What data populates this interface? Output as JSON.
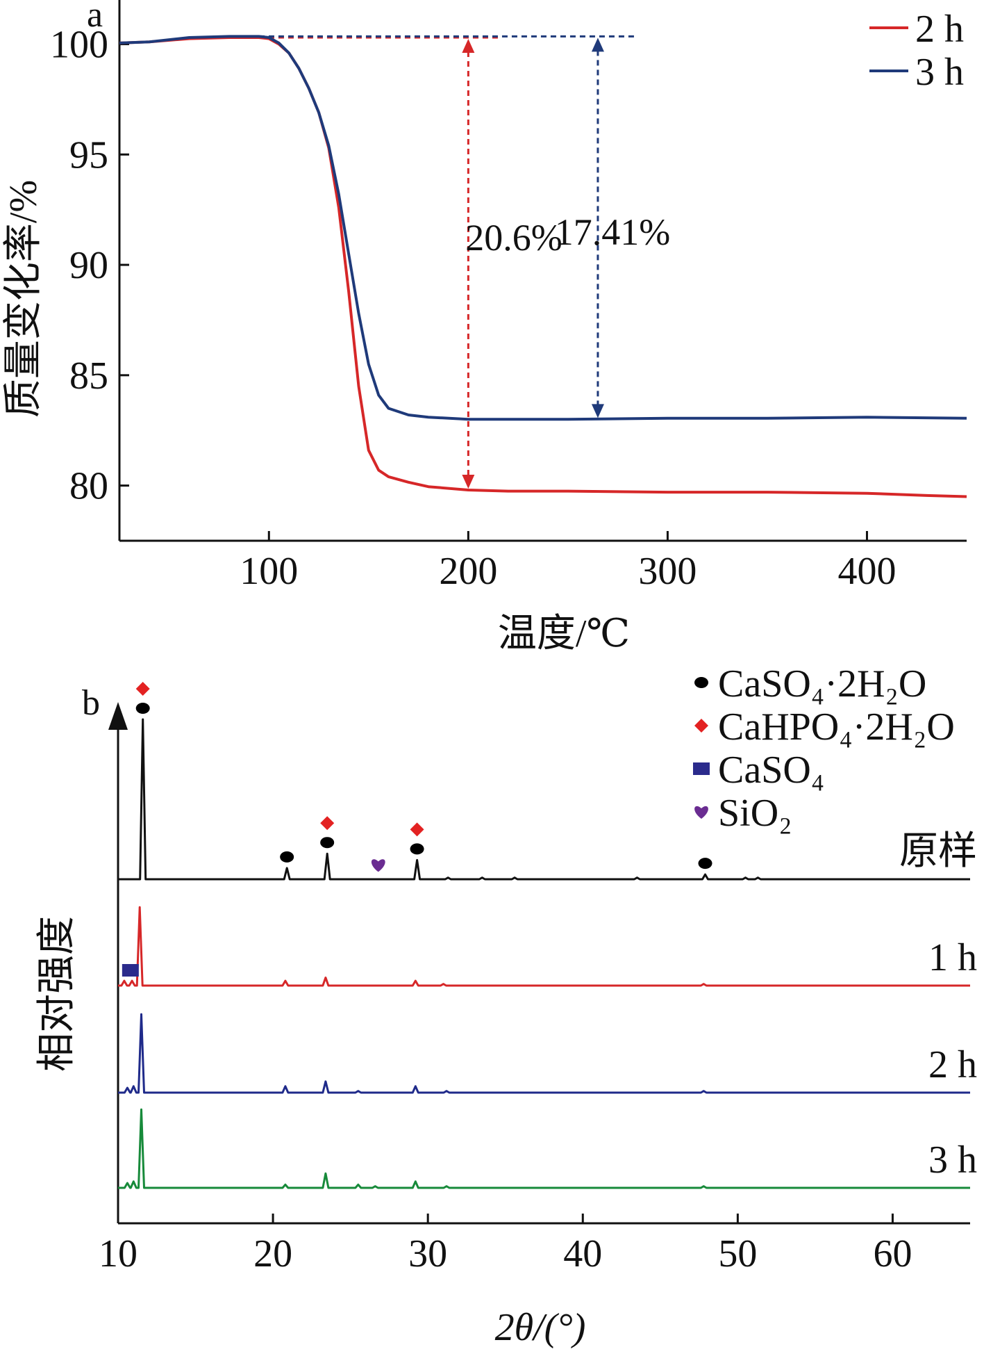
{
  "chart_data": [
    {
      "panel": "a",
      "type": "line",
      "xlabel": "温度/℃",
      "ylabel": "质量变化率/%",
      "xlim": [
        25,
        450
      ],
      "ylim": [
        77.5,
        102
      ],
      "xticks": [
        100,
        200,
        300,
        400
      ],
      "yticks": [
        80,
        85,
        90,
        95,
        100
      ],
      "xtick_labels": [
        "100",
        "200",
        "300",
        "400"
      ],
      "ytick_labels": [
        "80",
        "85",
        "90",
        "95",
        "100"
      ],
      "legend_position": "top-right",
      "series": [
        {
          "name": "2 h",
          "color": "#d62728",
          "x": [
            25,
            40,
            60,
            80,
            95,
            100,
            105,
            110,
            115,
            120,
            125,
            130,
            135,
            140,
            145,
            150,
            155,
            160,
            170,
            180,
            200,
            220,
            250,
            300,
            350,
            400,
            430,
            450
          ],
          "y": [
            100.05,
            100.1,
            100.25,
            100.3,
            100.3,
            100.25,
            100.0,
            99.6,
            98.9,
            98.0,
            96.9,
            95.3,
            92.6,
            88.8,
            84.5,
            81.6,
            80.7,
            80.4,
            80.15,
            79.95,
            79.8,
            79.75,
            79.75,
            79.7,
            79.7,
            79.65,
            79.55,
            79.5
          ]
        },
        {
          "name": "3 h",
          "color": "#1f3a7a",
          "x": [
            25,
            40,
            60,
            80,
            95,
            100,
            105,
            110,
            115,
            120,
            125,
            130,
            135,
            140,
            145,
            150,
            155,
            160,
            170,
            180,
            200,
            220,
            250,
            300,
            350,
            400,
            450
          ],
          "y": [
            100.05,
            100.1,
            100.3,
            100.35,
            100.35,
            100.3,
            100.05,
            99.6,
            98.9,
            98.0,
            96.9,
            95.4,
            93.2,
            90.5,
            87.8,
            85.5,
            84.1,
            83.5,
            83.2,
            83.1,
            83.0,
            83.0,
            83.0,
            83.05,
            83.05,
            83.1,
            83.05
          ]
        }
      ],
      "annotations": [
        {
          "text": "20.6%",
          "x": 200,
          "y_from": 100.3,
          "y_to": 79.8,
          "color": "#d62728",
          "line_x_from": 95,
          "line_x_to": 215
        },
        {
          "text": "17.41%",
          "x": 265,
          "y_from": 100.35,
          "y_to": 83.0,
          "color": "#1f3a7a",
          "line_x_from": 95,
          "line_x_to": 285
        }
      ]
    },
    {
      "panel": "b",
      "type": "line",
      "xlabel": "2θ/(°)",
      "ylabel": "相对强度",
      "xlim": [
        10,
        65
      ],
      "xticks": [
        10,
        20,
        30,
        40,
        50,
        60
      ],
      "xtick_labels": [
        "10",
        "20",
        "30",
        "40",
        "50",
        "60"
      ],
      "y_axis": "relative intensity, no scale",
      "series": [
        {
          "name": "原样",
          "color": "#111111",
          "offset": 3,
          "peaks": [
            [
              11.6,
              1.0
            ],
            [
              20.9,
              0.07
            ],
            [
              23.5,
              0.16
            ],
            [
              29.3,
              0.12
            ],
            [
              31.3,
              0.01
            ],
            [
              33.5,
              0.01
            ],
            [
              35.6,
              0.01
            ],
            [
              43.5,
              0.01
            ],
            [
              47.9,
              0.03
            ],
            [
              50.5,
              0.01
            ],
            [
              51.3,
              0.01
            ]
          ]
        },
        {
          "name": "1 h",
          "color": "#d62728",
          "offset": 2,
          "peaks": [
            [
              10.4,
              0.03
            ],
            [
              10.9,
              0.03
            ],
            [
              11.4,
              0.49
            ],
            [
              20.8,
              0.03
            ],
            [
              23.4,
              0.05
            ],
            [
              29.2,
              0.03
            ],
            [
              31.0,
              0.01
            ],
            [
              47.8,
              0.01
            ]
          ]
        },
        {
          "name": "2 h",
          "color": "#1f2a8a",
          "offset": 1,
          "peaks": [
            [
              10.6,
              0.03
            ],
            [
              11.0,
              0.04
            ],
            [
              11.5,
              0.49
            ],
            [
              20.8,
              0.04
            ],
            [
              23.4,
              0.07
            ],
            [
              25.5,
              0.01
            ],
            [
              29.2,
              0.04
            ],
            [
              31.2,
              0.01
            ],
            [
              47.8,
              0.01
            ]
          ]
        },
        {
          "name": "3 h",
          "color": "#178a3a",
          "offset": 0,
          "peaks": [
            [
              10.6,
              0.03
            ],
            [
              11.0,
              0.04
            ],
            [
              11.5,
              0.49
            ],
            [
              20.8,
              0.02
            ],
            [
              23.4,
              0.09
            ],
            [
              25.5,
              0.02
            ],
            [
              26.6,
              0.01
            ],
            [
              29.2,
              0.04
            ],
            [
              31.2,
              0.01
            ],
            [
              47.8,
              0.01
            ]
          ]
        }
      ],
      "legend_position": "top-right",
      "legend": [
        {
          "marker": "circle",
          "color": "#000000",
          "label": "CaSO₄·2H₂O"
        },
        {
          "marker": "diamond",
          "color": "#e32222",
          "label": "CaHPO₄·2H₂O"
        },
        {
          "marker": "square",
          "color": "#2b2b8c",
          "label": "CaSO₄"
        },
        {
          "marker": "heart",
          "color": "#6a2c91",
          "label": "SiO₂"
        }
      ],
      "phase_markers": [
        {
          "marker": "diamond",
          "trace": "原样",
          "x": 11.6
        },
        {
          "marker": "circle",
          "trace": "原样",
          "x": 11.6
        },
        {
          "marker": "circle",
          "trace": "原样",
          "x": 20.9
        },
        {
          "marker": "diamond",
          "trace": "原样",
          "x": 23.5
        },
        {
          "marker": "circle",
          "trace": "原样",
          "x": 23.5
        },
        {
          "marker": "heart",
          "trace": "原样",
          "x": 26.8
        },
        {
          "marker": "diamond",
          "trace": "原样",
          "x": 29.3
        },
        {
          "marker": "circle",
          "trace": "原样",
          "x": 29.3
        },
        {
          "marker": "circle",
          "trace": "原样",
          "x": 47.9
        },
        {
          "marker": "square",
          "trace": "1 h",
          "x": 10.8
        }
      ]
    }
  ],
  "labels": {
    "panel_a": "a",
    "panel_b": "b"
  }
}
